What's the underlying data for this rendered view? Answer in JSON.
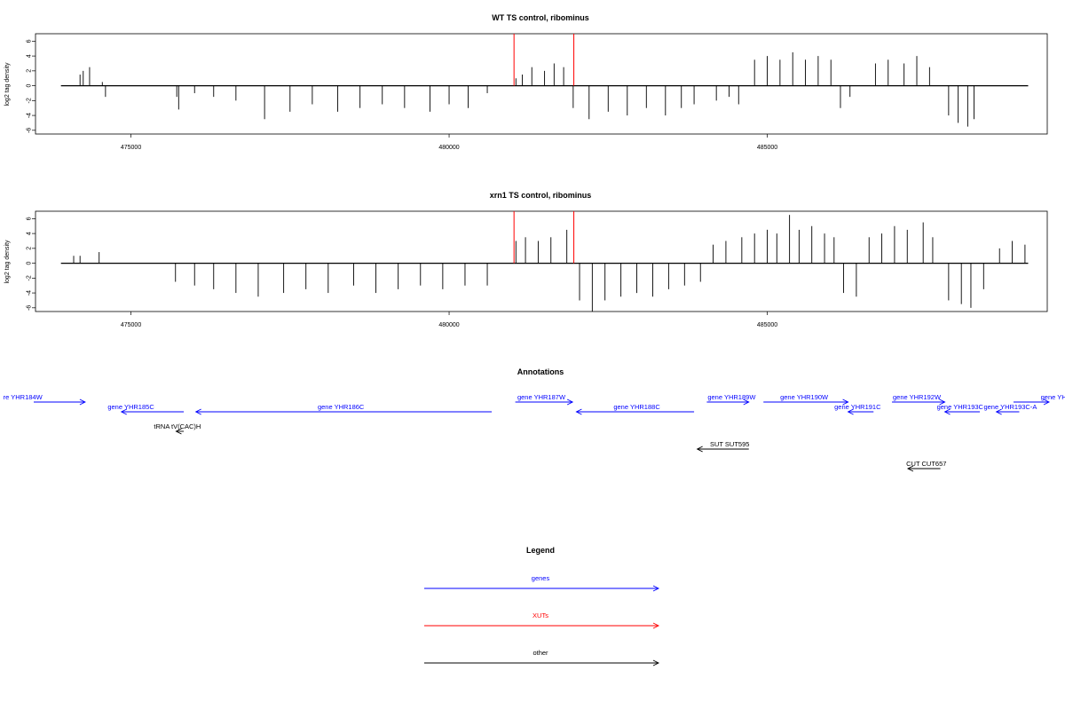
{
  "chart_data": [
    {
      "type": "bar",
      "title": "WT TS control, ribominus",
      "ylabel": "log2 tag density",
      "ylim": [
        -6.5,
        7
      ],
      "xlim": [
        473500,
        489400
      ],
      "yticks": [
        -6,
        -4,
        -2,
        0,
        2,
        4,
        6
      ],
      "xticks": [
        475000,
        480000,
        485000
      ],
      "xtick_labels": [
        "475000",
        "480000",
        "485000"
      ],
      "grid": false,
      "series": [
        {
          "color": "#000000",
          "x": [
            474200,
            474250,
            474350,
            474550,
            474600,
            475720,
            475750,
            476000,
            476300,
            476650,
            477100,
            477500,
            477850,
            478250,
            478600,
            478950,
            479300,
            479700,
            480000,
            480300,
            480600,
            481050,
            481150,
            481300,
            481500,
            481650,
            481800,
            481950,
            482200,
            482500,
            482800,
            483100,
            483400,
            483650,
            483850,
            484200,
            484400,
            484550,
            484800,
            485000,
            485200,
            485400,
            485600,
            485800,
            486000,
            486150,
            486300,
            486700,
            486900,
            487150,
            487350,
            487550,
            487850,
            488000,
            488150,
            488250
          ],
          "values": [
            1.5,
            2,
            2.5,
            0.5,
            -1.5,
            -1.5,
            -3.2,
            -1,
            -1.5,
            -2,
            -4.5,
            -3.5,
            -2.5,
            -3.5,
            -3,
            -2.5,
            -3,
            -3.5,
            -2.5,
            -3,
            -1,
            1,
            1.5,
            2.5,
            2,
            3,
            2.5,
            -3,
            -4.5,
            -3.5,
            -4,
            -3,
            -4,
            -3,
            -2.5,
            -2,
            -1.5,
            -2.5,
            3.5,
            4,
            3.5,
            4.5,
            3.5,
            4,
            3.5,
            -3,
            -1.5,
            3,
            3.5,
            3,
            4,
            2.5,
            -4,
            -5,
            -5.5,
            -4.5
          ]
        },
        {
          "color": "#ff0000",
          "x": [
            481020,
            481960
          ],
          "values": [
            7,
            7
          ]
        }
      ]
    },
    {
      "type": "bar",
      "title": "xrn1 TS control, ribominus",
      "ylabel": "log2 tag density",
      "ylim": [
        -6.5,
        7
      ],
      "xlim": [
        473500,
        489400
      ],
      "yticks": [
        -6,
        -4,
        -2,
        0,
        2,
        4,
        6
      ],
      "xticks": [
        475000,
        480000,
        485000
      ],
      "xtick_labels": [
        "475000",
        "480000",
        "485000"
      ],
      "grid": false,
      "series": [
        {
          "color": "#000000",
          "x": [
            474100,
            474200,
            474500,
            475700,
            476000,
            476300,
            476650,
            477000,
            477400,
            477750,
            478100,
            478500,
            478850,
            479200,
            479550,
            479900,
            480250,
            480600,
            481050,
            481200,
            481400,
            481600,
            481850,
            482050,
            482250,
            482450,
            482700,
            482950,
            483200,
            483450,
            483700,
            483950,
            484150,
            484350,
            484600,
            484800,
            485000,
            485150,
            485350,
            485500,
            485700,
            485900,
            486050,
            486200,
            486400,
            486600,
            486800,
            487000,
            487200,
            487450,
            487600,
            487850,
            488050,
            488200,
            488400,
            488650,
            488850,
            489050
          ],
          "values": [
            1,
            1,
            1.5,
            -2.5,
            -3,
            -3.5,
            -4,
            -4.5,
            -4,
            -3.5,
            -4,
            -3,
            -4,
            -3.5,
            -3,
            -3.5,
            -3,
            -3,
            3,
            3.5,
            3,
            3.5,
            4.5,
            -5,
            -6.5,
            -5,
            -4.5,
            -4,
            -4.5,
            -3.5,
            -3,
            -2.5,
            2.5,
            3,
            3.5,
            4,
            4.5,
            4,
            6.5,
            4.5,
            5,
            4,
            3.5,
            -4,
            -4.5,
            3.5,
            4,
            5,
            4.5,
            5.5,
            3.5,
            -5,
            -5.5,
            -6,
            -3.5,
            2,
            3,
            2.5
          ]
        },
        {
          "color": "#ff0000",
          "x": [
            481020,
            481960
          ],
          "values": [
            7,
            7
          ]
        }
      ]
    }
  ],
  "annotations": {
    "title": "Annotations",
    "genes": [
      {
        "label": "re YHR184W",
        "x1": 473000,
        "x2": 474280,
        "dir": "right",
        "row": 0,
        "tx": 473300
      },
      {
        "label": "gene YHR185C",
        "x1": 474850,
        "x2": 475830,
        "dir": "left",
        "row": 1,
        "tx": 475000
      },
      {
        "label": "gene YHR186C",
        "x1": 476020,
        "x2": 480670,
        "dir": "left",
        "row": 1,
        "tx": 478300
      },
      {
        "label": "gene YHR187W",
        "x1": 481040,
        "x2": 481940,
        "dir": "right",
        "row": 0,
        "tx": 481450
      },
      {
        "label": "gene YHR188C",
        "x1": 482000,
        "x2": 483850,
        "dir": "left",
        "row": 1,
        "tx": 482950
      },
      {
        "label": "gene YHR189W",
        "x1": 484050,
        "x2": 484710,
        "dir": "right",
        "row": 0,
        "tx": 484440
      },
      {
        "label": "gene YHR190W",
        "x1": 484940,
        "x2": 486270,
        "dir": "right",
        "row": 0,
        "tx": 485580
      },
      {
        "label": "gene YHR191C",
        "x1": 486270,
        "x2": 486670,
        "dir": "left",
        "row": 1,
        "tx": 486420
      },
      {
        "label": "gene YHR192W",
        "x1": 486960,
        "x2": 487790,
        "dir": "right",
        "row": 0,
        "tx": 487350
      },
      {
        "label": "gene YHR193C",
        "x1": 487790,
        "x2": 488340,
        "dir": "left",
        "row": 1,
        "tx": 488030
      },
      {
        "label": "gene YHR193C-A",
        "x1": 488600,
        "x2": 488960,
        "dir": "left",
        "row": 1,
        "tx": 488820
      },
      {
        "label": "gene YH",
        "x1": 488870,
        "x2": 489700,
        "dir": "right",
        "row": 0,
        "tx": 489500
      }
    ],
    "others": [
      {
        "label": "tRNA tV(CAC)H",
        "x1": 475710,
        "x2": 475830,
        "dir": "left",
        "row": 2,
        "tx": 475730
      },
      {
        "label": "SUT SUT595",
        "x1": 483900,
        "x2": 484710,
        "dir": "left",
        "row": 3,
        "tx": 484410
      },
      {
        "label": "CUT CUT657",
        "x1": 487210,
        "x2": 487720,
        "dir": "left",
        "row": 4,
        "tx": 487500
      }
    ]
  },
  "legend": {
    "title": "Legend",
    "items": [
      {
        "label": "genes",
        "color": "#0000ff"
      },
      {
        "label": "XUTs",
        "color": "#ff0000"
      },
      {
        "label": "other",
        "color": "#000000"
      }
    ]
  }
}
